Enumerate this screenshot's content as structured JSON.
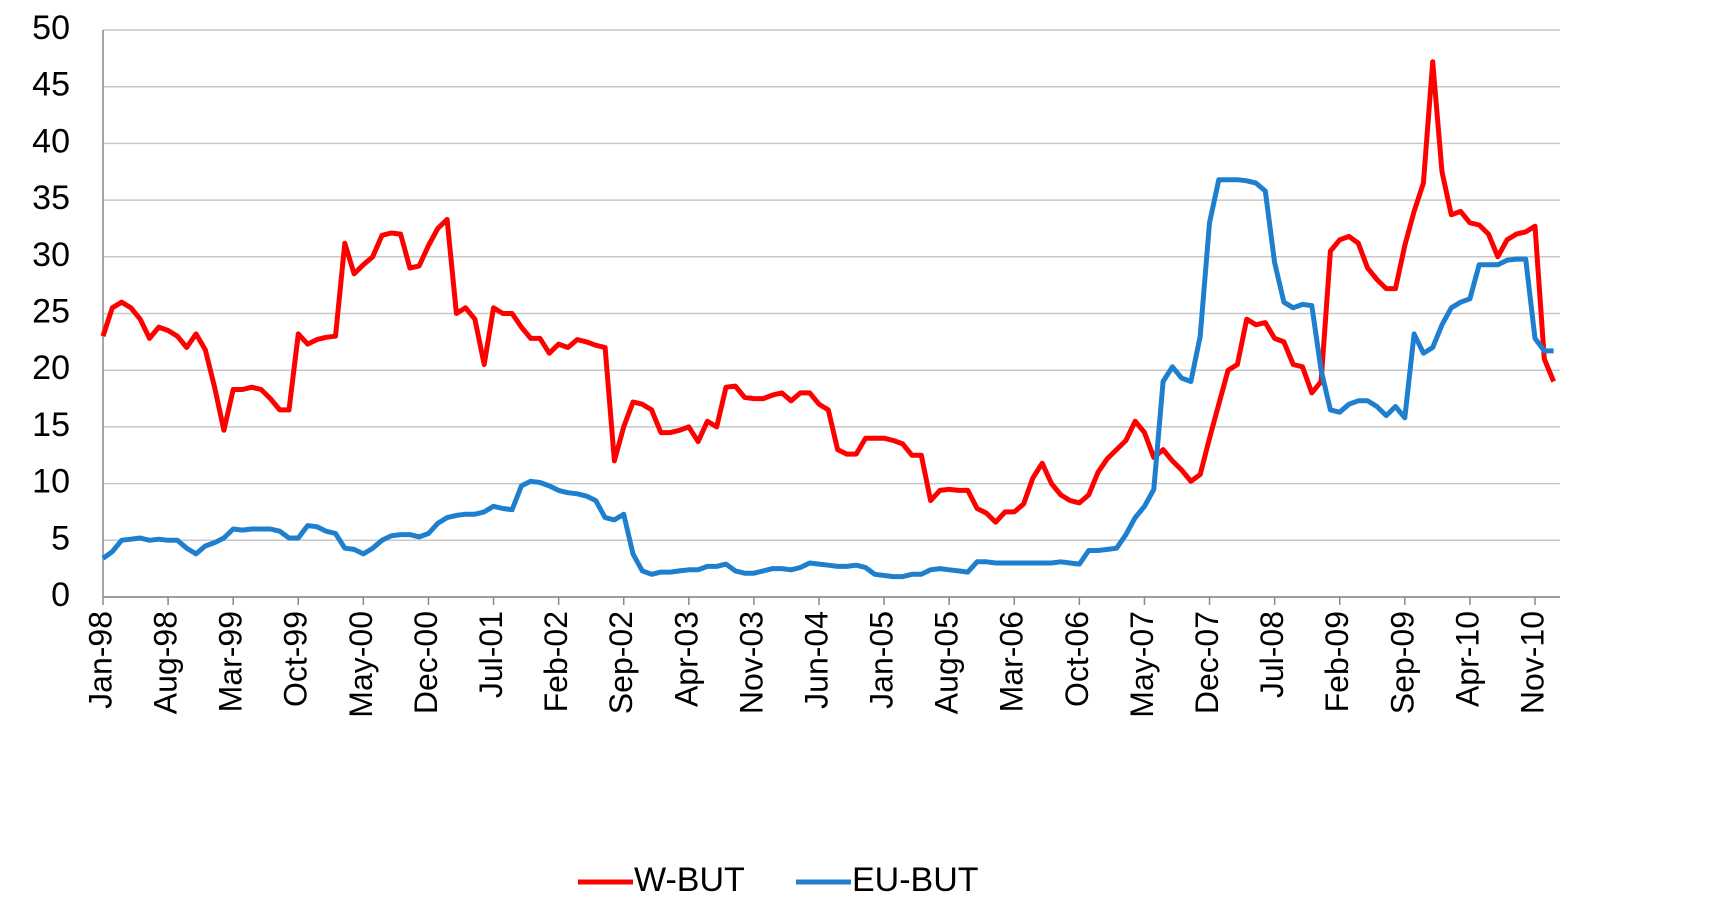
{
  "chart_data": {
    "type": "line",
    "categories": [
      "Jan-98",
      null,
      null,
      null,
      null,
      null,
      null,
      "Aug-98",
      null,
      null,
      null,
      null,
      null,
      null,
      "Mar-99",
      null,
      null,
      null,
      null,
      null,
      null,
      "Oct-99",
      null,
      null,
      null,
      null,
      null,
      null,
      "May-00",
      null,
      null,
      null,
      null,
      null,
      null,
      "Dec-00",
      null,
      null,
      null,
      null,
      null,
      null,
      "Jul-01",
      null,
      null,
      null,
      null,
      null,
      null,
      "Feb-02",
      null,
      null,
      null,
      null,
      null,
      null,
      "Sep-02",
      null,
      null,
      null,
      null,
      null,
      null,
      "Apr-03",
      null,
      null,
      null,
      null,
      null,
      null,
      "Nov-03",
      null,
      null,
      null,
      null,
      null,
      null,
      "Jun-04",
      null,
      null,
      null,
      null,
      null,
      null,
      "Jan-05",
      null,
      null,
      null,
      null,
      null,
      null,
      "Aug-05",
      null,
      null,
      null,
      null,
      null,
      null,
      "Mar-06",
      null,
      null,
      null,
      null,
      null,
      null,
      "Oct-06",
      null,
      null,
      null,
      null,
      null,
      null,
      "May-07",
      null,
      null,
      null,
      null,
      null,
      null,
      "Dec-07",
      null,
      null,
      null,
      null,
      null,
      null,
      "Jul-08",
      null,
      null,
      null,
      null,
      null,
      null,
      "Feb-09",
      null,
      null,
      null,
      null,
      null,
      null,
      "Sep-09",
      null,
      null,
      null,
      null,
      null,
      null,
      "Apr-10",
      null,
      null,
      null,
      null,
      null,
      null,
      "Nov-10",
      null,
      null
    ],
    "series": [
      {
        "name": "W-BUT",
        "color": "#ff0000",
        "values": [
          23,
          25.5,
          26,
          25.5,
          24.5,
          22.8,
          23.8,
          23.5,
          23,
          22,
          23.2,
          21.8,
          18.5,
          14.7,
          18.3,
          18.3,
          18.5,
          18.3,
          17.5,
          16.5,
          16.5,
          23.2,
          22.3,
          22.7,
          22.9,
          23,
          31.2,
          28.5,
          29.3,
          30,
          31.9,
          32.1,
          32,
          29,
          29.2,
          31,
          32.5,
          33.3,
          25,
          25.5,
          24.5,
          20.5,
          25.5,
          25,
          25,
          23.8,
          22.8,
          22.8,
          21.5,
          22.3,
          22,
          22.7,
          22.5,
          22.2,
          22,
          12,
          15,
          17.2,
          17,
          16.5,
          14.5,
          14.5,
          14.7,
          15,
          13.7,
          15.5,
          15,
          18.5,
          18.6,
          17.6,
          17.5,
          17.5,
          17.8,
          18,
          17.3,
          18,
          18,
          17,
          16.5,
          13,
          12.6,
          12.6,
          14,
          14,
          14,
          13.8,
          13.5,
          12.5,
          12.5,
          8.5,
          9.4,
          9.5,
          9.4,
          9.4,
          7.8,
          7.4,
          6.6,
          7.5,
          7.5,
          8.2,
          10.5,
          11.8,
          10,
          9,
          8.5,
          8.3,
          9,
          11,
          12.2,
          13,
          13.8,
          15.5,
          14.5,
          12.3,
          13,
          12,
          11.2,
          10.2,
          10.8,
          14,
          17,
          20,
          20.5,
          24.5,
          24,
          24.2,
          22.8,
          22.5,
          20.5,
          20.3,
          18,
          19,
          30.5,
          31.5,
          31.8,
          31.2,
          29,
          28,
          27.2,
          27.2,
          31,
          34,
          36.5,
          47.2,
          37.5,
          33.7,
          34,
          33,
          32.8,
          32,
          30,
          31.5,
          32,
          32.2,
          32.7,
          21,
          19
        ]
      },
      {
        "name": "EU-BUT",
        "color": "#1f7fcf",
        "values": [
          3.4,
          4,
          5,
          5.1,
          5.2,
          5,
          5.1,
          5,
          5,
          4.3,
          3.8,
          4.5,
          4.8,
          5.2,
          6,
          5.9,
          6,
          6,
          6,
          5.8,
          5.2,
          5.2,
          6.3,
          6.2,
          5.8,
          5.6,
          4.3,
          4.2,
          3.8,
          4.3,
          5,
          5.4,
          5.5,
          5.5,
          5.3,
          5.6,
          6.5,
          7,
          7.2,
          7.3,
          7.3,
          7.5,
          8,
          7.8,
          7.7,
          9.8,
          10.2,
          10.1,
          9.8,
          9.4,
          9.2,
          9.1,
          8.9,
          8.5,
          7,
          6.8,
          7.3,
          3.8,
          2.3,
          2,
          2.2,
          2.2,
          2.3,
          2.4,
          2.4,
          2.7,
          2.7,
          2.9,
          2.3,
          2.1,
          2.1,
          2.3,
          2.5,
          2.5,
          2.4,
          2.6,
          3,
          2.9,
          2.8,
          2.7,
          2.7,
          2.8,
          2.6,
          2,
          1.9,
          1.8,
          1.8,
          2,
          2,
          2.4,
          2.5,
          2.4,
          2.3,
          2.2,
          3.1,
          3.1,
          3,
          3,
          3,
          3,
          3,
          3,
          3,
          3.1,
          3,
          2.9,
          4.1,
          4.1,
          4.2,
          4.3,
          5.5,
          7,
          8,
          9.5,
          19,
          20.3,
          19.3,
          19,
          23,
          33,
          36.8,
          36.8,
          36.8,
          36.7,
          36.5,
          35.8,
          29.5,
          26,
          25.5,
          25.8,
          25.7,
          20,
          16.5,
          16.3,
          17,
          17.3,
          17.3,
          16.8,
          16,
          16.8,
          15.8,
          23.2,
          21.5,
          22,
          24,
          25.5,
          26,
          26.3,
          29.3,
          29.3,
          29.3,
          29.7,
          29.8,
          29.8,
          22.8,
          21.7,
          21.7
        ]
      }
    ],
    "ylim": [
      0,
      50
    ],
    "yticks": [
      0,
      5,
      10,
      15,
      20,
      25,
      30,
      35,
      40,
      45,
      50
    ],
    "grid": true,
    "legend": "bottom"
  }
}
